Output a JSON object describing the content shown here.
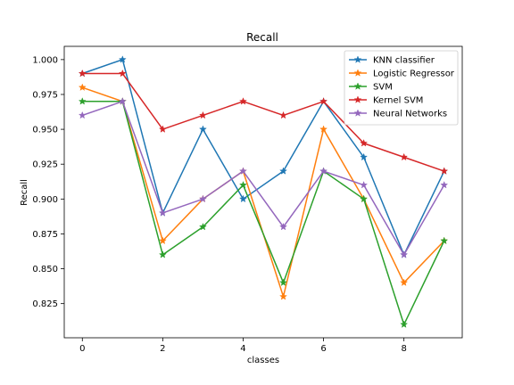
{
  "chart_data": {
    "type": "line",
    "title": "Recall",
    "xlabel": "classes",
    "ylabel": "Recall",
    "x": [
      0,
      1,
      2,
      3,
      4,
      5,
      6,
      7,
      8,
      9
    ],
    "xlim": [
      -0.45,
      9.45
    ],
    "ylim": [
      0.8005,
      1.0095
    ],
    "xticks": [
      0,
      2,
      4,
      6,
      8
    ],
    "yticks": [
      0.825,
      0.85,
      0.875,
      0.9,
      0.925,
      0.95,
      0.975,
      1.0
    ],
    "ytick_labels": [
      "0.825",
      "0.850",
      "0.875",
      "0.900",
      "0.925",
      "0.950",
      "0.975",
      "1.000"
    ],
    "grid": false,
    "legend_position": "top-right",
    "marker": "star",
    "series": [
      {
        "name": "KNN classifier",
        "color": "#1f77b4",
        "values": [
          0.99,
          1.0,
          0.89,
          0.95,
          0.9,
          0.92,
          0.97,
          0.93,
          0.86,
          0.92
        ]
      },
      {
        "name": "Logistic Regressor",
        "color": "#ff7f0e",
        "values": [
          0.98,
          0.97,
          0.87,
          0.9,
          0.92,
          0.83,
          0.95,
          0.9,
          0.84,
          0.87
        ]
      },
      {
        "name": "SVM",
        "color": "#2ca02c",
        "values": [
          0.97,
          0.97,
          0.86,
          0.88,
          0.91,
          0.84,
          0.92,
          0.9,
          0.81,
          0.87
        ]
      },
      {
        "name": "Kernel SVM",
        "color": "#d62728",
        "values": [
          0.99,
          0.99,
          0.95,
          0.96,
          0.97,
          0.96,
          0.97,
          0.94,
          0.93,
          0.92
        ]
      },
      {
        "name": "Neural Networks",
        "color": "#9467bd",
        "values": [
          0.96,
          0.97,
          0.89,
          0.9,
          0.92,
          0.88,
          0.92,
          0.91,
          0.86,
          0.91
        ]
      }
    ]
  }
}
